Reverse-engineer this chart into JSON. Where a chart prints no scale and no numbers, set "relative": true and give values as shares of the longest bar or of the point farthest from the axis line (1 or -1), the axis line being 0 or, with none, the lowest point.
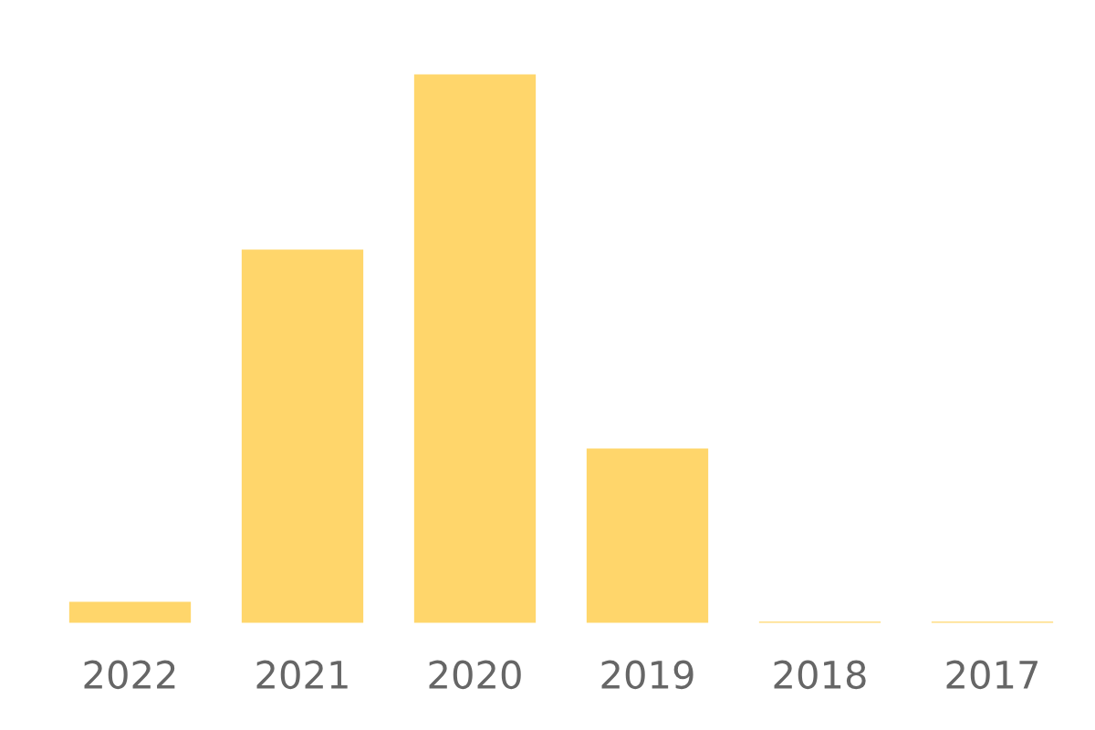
{
  "chart_data": {
    "type": "bar",
    "relative": true,
    "categories": [
      "2022",
      "2021",
      "2020",
      "2019",
      "2018",
      "2017"
    ],
    "values": [
      0.043,
      0.682,
      1,
      0.321,
      0.007,
      0.007
    ],
    "color": "#ffd66b",
    "grid": false,
    "legend": false,
    "tick_labels": "x"
  }
}
